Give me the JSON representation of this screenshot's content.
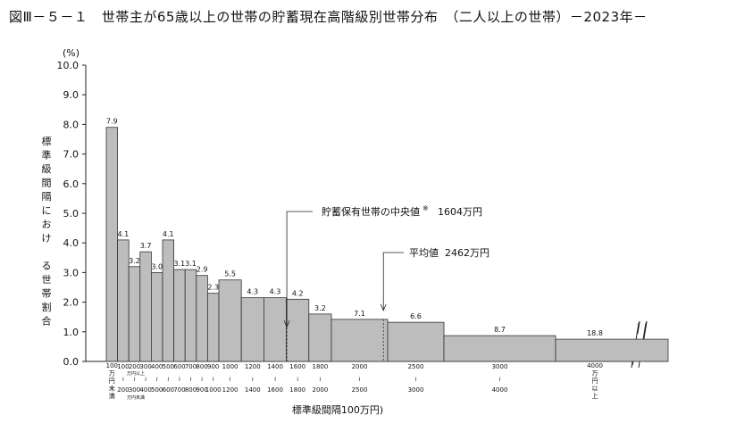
{
  "title": "図Ⅲ－５－１　世帯主が65歳以上の世帯の貯蓄現在高階級別世帯分布　（二人以上の世帯）－2023年－",
  "chart_data": {
    "type": "bar",
    "unit_label": "(%)",
    "ylabel": "標準級間隔におけ る世帯割合",
    "xlabel": "標準級間隔100万円)",
    "ylim": [
      0,
      10
    ],
    "y_ticks": [
      "0.0",
      "1.0",
      "2.0",
      "3.0",
      "4.0",
      "5.0",
      "6.0",
      "7.0",
      "8.0",
      "9.0",
      "10.0"
    ],
    "bins": [
      {
        "from": 0,
        "to": 100,
        "value": 7.9,
        "label": "7.9",
        "top": "100万円未満",
        "bottom": ""
      },
      {
        "from": 100,
        "to": 200,
        "value": 4.1,
        "label": "4.1",
        "top": "100",
        "bottom": "200"
      },
      {
        "from": 200,
        "to": 300,
        "value": 3.2,
        "label": "3.2",
        "top": "200",
        "bottom": "300"
      },
      {
        "from": 300,
        "to": 400,
        "value": 3.7,
        "label": "3.7",
        "top": "300",
        "bottom": "400"
      },
      {
        "from": 400,
        "to": 500,
        "value": 3.0,
        "label": "3.0",
        "top": "400",
        "bottom": "500"
      },
      {
        "from": 500,
        "to": 600,
        "value": 4.1,
        "label": "4.1",
        "top": "500",
        "bottom": "600"
      },
      {
        "from": 600,
        "to": 700,
        "value": 3.1,
        "label": "3.1",
        "top": "600",
        "bottom": "700"
      },
      {
        "from": 700,
        "to": 800,
        "value": 3.1,
        "label": "3.1",
        "top": "700",
        "bottom": "800"
      },
      {
        "from": 800,
        "to": 900,
        "value": 2.9,
        "label": "2.9",
        "top": "800",
        "bottom": "900"
      },
      {
        "from": 900,
        "to": 1000,
        "value": 2.3,
        "label": "2.3",
        "top": "900",
        "bottom": "1000"
      },
      {
        "from": 1000,
        "to": 1200,
        "value": 2.75,
        "label": "5.5",
        "top": "1000",
        "bottom": "1200"
      },
      {
        "from": 1200,
        "to": 1400,
        "value": 2.15,
        "label": "4.3",
        "top": "1200",
        "bottom": "1400"
      },
      {
        "from": 1400,
        "to": 1600,
        "value": 2.15,
        "label": "4.3",
        "top": "1400",
        "bottom": "1600"
      },
      {
        "from": 1600,
        "to": 1800,
        "value": 2.1,
        "label": "4.2",
        "top": "1600",
        "bottom": "1800"
      },
      {
        "from": 1800,
        "to": 2000,
        "value": 1.6,
        "label": "3.2",
        "top": "1800",
        "bottom": "2000"
      },
      {
        "from": 2000,
        "to": 2500,
        "value": 1.42,
        "label": "7.1",
        "top": "2000",
        "bottom": "2500"
      },
      {
        "from": 2500,
        "to": 3000,
        "value": 1.32,
        "label": "6.6",
        "top": "2500",
        "bottom": "3000"
      },
      {
        "from": 3000,
        "to": 4000,
        "value": 0.87,
        "label": "8.7",
        "top": "3000",
        "bottom": "4000"
      },
      {
        "from": 4000,
        "to": null,
        "value": 0.75,
        "label": "18.8",
        "top": "4000万円以上",
        "bottom": ""
      }
    ],
    "small_tick_notes": [
      "万円以上",
      "万円未満"
    ],
    "annotations": [
      {
        "text": "貯蓄保有世帯の中央値",
        "note": "※",
        "value_text": "1604万円",
        "x": 1604
      },
      {
        "text": "平均値",
        "value_text": "2462万円",
        "x": 2462
      }
    ]
  }
}
